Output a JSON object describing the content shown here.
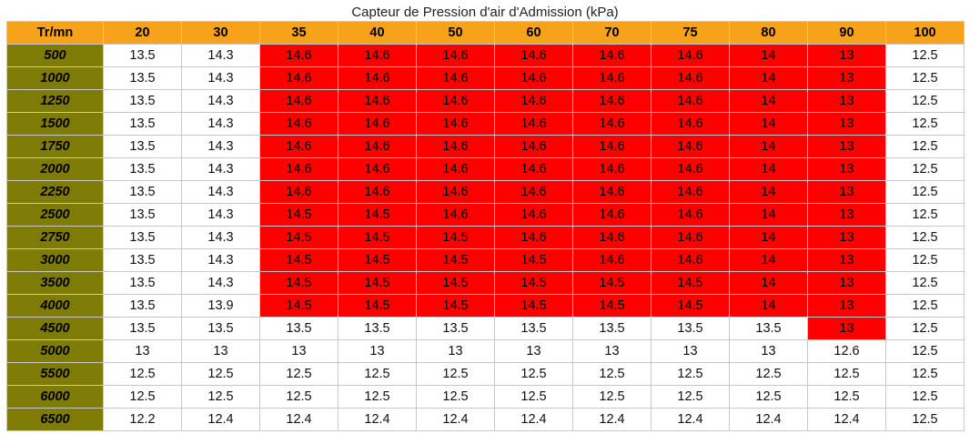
{
  "title": "Capteur de Pression d'air d'Admission (kPa)",
  "colors": {
    "header": "#f7a21b",
    "rpm_column": "#7e7b06",
    "highlight": "#ff0000",
    "normal": "#ffffff"
  },
  "table": {
    "corner": "Tr/mn",
    "columns": [
      "20",
      "30",
      "35",
      "40",
      "50",
      "60",
      "70",
      "75",
      "80",
      "90",
      "100"
    ],
    "rows": [
      {
        "rpm": "500",
        "cells": [
          "13.5",
          "14.3",
          "14.6",
          "14.6",
          "14.6",
          "14.6",
          "14.6",
          "14.6",
          "14",
          "13",
          "12.5"
        ],
        "highlight": [
          false,
          false,
          true,
          true,
          true,
          true,
          true,
          true,
          true,
          true,
          false
        ]
      },
      {
        "rpm": "1000",
        "cells": [
          "13.5",
          "14.3",
          "14.6",
          "14.6",
          "14.6",
          "14.6",
          "14.6",
          "14.6",
          "14",
          "13",
          "12.5"
        ],
        "highlight": [
          false,
          false,
          true,
          true,
          true,
          true,
          true,
          true,
          true,
          true,
          false
        ]
      },
      {
        "rpm": "1250",
        "cells": [
          "13.5",
          "14.3",
          "14.6",
          "14.6",
          "14.6",
          "14.6",
          "14.6",
          "14.6",
          "14",
          "13",
          "12.5"
        ],
        "highlight": [
          false,
          false,
          true,
          true,
          true,
          true,
          true,
          true,
          true,
          true,
          false
        ]
      },
      {
        "rpm": "1500",
        "cells": [
          "13.5",
          "14.3",
          "14.6",
          "14.6",
          "14.6",
          "14.6",
          "14.6",
          "14.6",
          "14",
          "13",
          "12.5"
        ],
        "highlight": [
          false,
          false,
          true,
          true,
          true,
          true,
          true,
          true,
          true,
          true,
          false
        ]
      },
      {
        "rpm": "1750",
        "cells": [
          "13.5",
          "14.3",
          "14.6",
          "14.6",
          "14.6",
          "14.6",
          "14.6",
          "14.6",
          "14",
          "13",
          "12.5"
        ],
        "highlight": [
          false,
          false,
          true,
          true,
          true,
          true,
          true,
          true,
          true,
          true,
          false
        ]
      },
      {
        "rpm": "2000",
        "cells": [
          "13.5",
          "14.3",
          "14.6",
          "14.6",
          "14.6",
          "14.6",
          "14.6",
          "14.6",
          "14",
          "13",
          "12.5"
        ],
        "highlight": [
          false,
          false,
          true,
          true,
          true,
          true,
          true,
          true,
          true,
          true,
          false
        ]
      },
      {
        "rpm": "2250",
        "cells": [
          "13.5",
          "14.3",
          "14.6",
          "14.6",
          "14.6",
          "14.6",
          "14.6",
          "14.6",
          "14",
          "13",
          "12.5"
        ],
        "highlight": [
          false,
          false,
          true,
          true,
          true,
          true,
          true,
          true,
          true,
          true,
          false
        ]
      },
      {
        "rpm": "2500",
        "cells": [
          "13.5",
          "14.3",
          "14.5",
          "14.5",
          "14.6",
          "14.6",
          "14.6",
          "14.6",
          "14",
          "13",
          "12.5"
        ],
        "highlight": [
          false,
          false,
          true,
          true,
          true,
          true,
          true,
          true,
          true,
          true,
          false
        ]
      },
      {
        "rpm": "2750",
        "cells": [
          "13.5",
          "14.3",
          "14.5",
          "14.5",
          "14.5",
          "14.6",
          "14.6",
          "14.6",
          "14",
          "13",
          "12.5"
        ],
        "highlight": [
          false,
          false,
          true,
          true,
          true,
          true,
          true,
          true,
          true,
          true,
          false
        ]
      },
      {
        "rpm": "3000",
        "cells": [
          "13.5",
          "14.3",
          "14.5",
          "14.5",
          "14.5",
          "14.5",
          "14.6",
          "14.6",
          "14",
          "13",
          "12.5"
        ],
        "highlight": [
          false,
          false,
          true,
          true,
          true,
          true,
          true,
          true,
          true,
          true,
          false
        ]
      },
      {
        "rpm": "3500",
        "cells": [
          "13.5",
          "14.3",
          "14.5",
          "14.5",
          "14.5",
          "14.5",
          "14.5",
          "14.5",
          "14",
          "13",
          "12.5"
        ],
        "highlight": [
          false,
          false,
          true,
          true,
          true,
          true,
          true,
          true,
          true,
          true,
          false
        ]
      },
      {
        "rpm": "4000",
        "cells": [
          "13.5",
          "13.9",
          "14.5",
          "14.5",
          "14.5",
          "14.5",
          "14.5",
          "14.5",
          "14",
          "13",
          "12.5"
        ],
        "highlight": [
          false,
          false,
          true,
          true,
          true,
          true,
          true,
          true,
          true,
          true,
          false
        ]
      },
      {
        "rpm": "4500",
        "cells": [
          "13.5",
          "13.5",
          "13.5",
          "13.5",
          "13.5",
          "13.5",
          "13.5",
          "13.5",
          "13.5",
          "13",
          "12.5"
        ],
        "highlight": [
          false,
          false,
          false,
          false,
          false,
          false,
          false,
          false,
          false,
          true,
          false
        ]
      },
      {
        "rpm": "5000",
        "cells": [
          "13",
          "13",
          "13",
          "13",
          "13",
          "13",
          "13",
          "13",
          "13",
          "12.6",
          "12.5"
        ],
        "highlight": [
          false,
          false,
          false,
          false,
          false,
          false,
          false,
          false,
          false,
          false,
          false
        ]
      },
      {
        "rpm": "5500",
        "cells": [
          "12.5",
          "12.5",
          "12.5",
          "12.5",
          "12.5",
          "12.5",
          "12.5",
          "12.5",
          "12.5",
          "12.5",
          "12.5"
        ],
        "highlight": [
          false,
          false,
          false,
          false,
          false,
          false,
          false,
          false,
          false,
          false,
          false
        ]
      },
      {
        "rpm": "6000",
        "cells": [
          "12.5",
          "12.5",
          "12.5",
          "12.5",
          "12.5",
          "12.5",
          "12.5",
          "12.5",
          "12.5",
          "12.5",
          "12.5"
        ],
        "highlight": [
          false,
          false,
          false,
          false,
          false,
          false,
          false,
          false,
          false,
          false,
          false
        ]
      },
      {
        "rpm": "6500",
        "cells": [
          "12.2",
          "12.4",
          "12.4",
          "12.4",
          "12.4",
          "12.4",
          "12.4",
          "12.4",
          "12.4",
          "12.4",
          "12.5"
        ],
        "highlight": [
          false,
          false,
          false,
          false,
          false,
          false,
          false,
          false,
          false,
          false,
          false
        ]
      }
    ]
  },
  "chart_data": {
    "type": "table",
    "title": "Capteur de Pression d'air d'Admission (kPa)",
    "row_header": "Tr/mn",
    "columns": [
      20,
      30,
      35,
      40,
      50,
      60,
      70,
      75,
      80,
      90,
      100
    ],
    "rows": [
      500,
      1000,
      1250,
      1500,
      1750,
      2000,
      2250,
      2500,
      2750,
      3000,
      3500,
      4000,
      4500,
      5000,
      5500,
      6000,
      6500
    ]
  }
}
